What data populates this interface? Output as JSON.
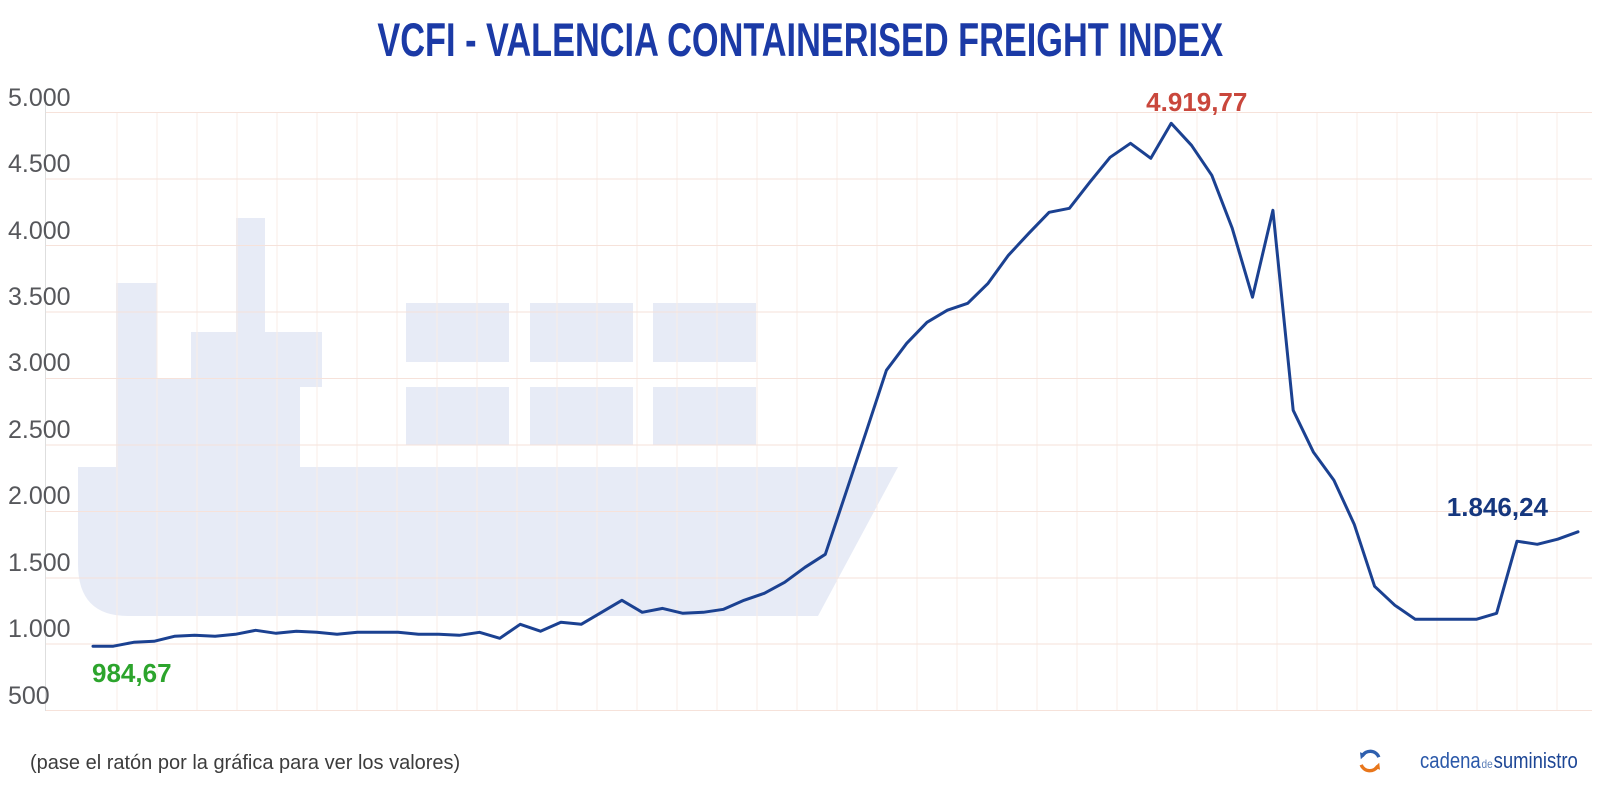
{
  "title": "VCFI - VALENCIA CONTAINERISED FREIGHT INDEX",
  "colors": {
    "title": "#1b3aa6",
    "line": "#1b4191",
    "start_label": "#2ca42c",
    "peak_label": "#c9473c",
    "end_label": "#16377e",
    "axis_label": "#56575b",
    "watermark": "#e7ebf6",
    "grid_horizontal": "#f6e2da",
    "grid_vertical": "#f9ece7"
  },
  "footer": {
    "hint": "(pase el ratón por la gráfica para ver los valores)",
    "logo": {
      "part1": "cadena",
      "part2": "de",
      "part3": "suministro"
    }
  },
  "chart_data": {
    "type": "line",
    "title": "VCFI - VALENCIA CONTAINERISED FREIGHT INDEX",
    "ylabel": "",
    "xlabel": "",
    "ylim": [
      500,
      5000
    ],
    "grid": "on",
    "x_labels_visible": false,
    "y_axis": {
      "ticks": [
        {
          "label": "5.000",
          "value": 5000
        },
        {
          "label": "4.500",
          "value": 4500
        },
        {
          "label": "4.000",
          "value": 4000
        },
        {
          "label": "3.500",
          "value": 3500
        },
        {
          "label": "3.000",
          "value": 3000
        },
        {
          "label": "2.500",
          "value": 2500
        },
        {
          "label": "2.000",
          "value": 2000
        },
        {
          "label": "1.500",
          "value": 1500
        },
        {
          "label": "1.000",
          "value": 1000
        },
        {
          "label": "500",
          "value": 500
        }
      ]
    },
    "series": [
      {
        "name": "VCFI",
        "color": "#1b4191",
        "values": [
          984.67,
          985,
          1015,
          1022,
          1060,
          1067,
          1060,
          1075,
          1105,
          1082,
          1098,
          1090,
          1075,
          1090,
          1090,
          1090,
          1075,
          1075,
          1067,
          1090,
          1045,
          1150,
          1098,
          1165,
          1150,
          1240,
          1331,
          1240,
          1270,
          1233,
          1240,
          1263,
          1331,
          1383,
          1466,
          1579,
          1677,
          2136,
          2595,
          3061,
          3264,
          3422,
          3513,
          3565,
          3716,
          3926,
          4092,
          4250,
          4280,
          4476,
          4664,
          4769,
          4656,
          4919.77,
          4754,
          4528,
          4130,
          3611,
          4265,
          2760,
          2444,
          2234,
          1903,
          1436,
          1293,
          1188,
          1188,
          1188,
          1188,
          1233,
          1775,
          1752,
          1790,
          1846.24
        ]
      }
    ],
    "annotations": [
      {
        "text": "984,67",
        "value": 984.67,
        "point_index": 0,
        "color": "#2ca42c",
        "placement": "below-start"
      },
      {
        "text": "4.919,77",
        "value": 4919.77,
        "point_index": 53,
        "color": "#c9473c",
        "placement": "above-peak"
      },
      {
        "text": "1.846,24",
        "value": 1846.24,
        "point_index": 73,
        "color": "#16377e",
        "placement": "above-end"
      }
    ]
  }
}
